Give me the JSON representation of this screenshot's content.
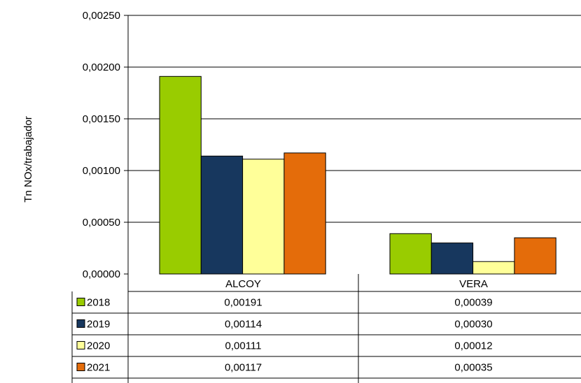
{
  "chart_data": {
    "type": "bar",
    "ylabel": "Tn NOx/trabajador",
    "xlabel": "",
    "ylim": [
      0,
      0.0025
    ],
    "y_ticks": [
      "0,00000",
      "0,00050",
      "0,00100",
      "0,00150",
      "0,00200",
      "0,00250"
    ],
    "y_tick_values": [
      0,
      0.0005,
      0.001,
      0.0015,
      0.002,
      0.0025
    ],
    "grid": true,
    "legend": "data-table-left",
    "categories": [
      "ALCOY",
      "VERA"
    ],
    "series": [
      {
        "name": "2018",
        "color": "#99cc00",
        "values": [
          0.00191,
          0.00039
        ],
        "labels": [
          "0,00191",
          "0,00039"
        ]
      },
      {
        "name": "2019",
        "color": "#17375e",
        "values": [
          0.00114,
          0.0003
        ],
        "labels": [
          "0,00114",
          "0,00030"
        ]
      },
      {
        "name": "2020",
        "color": "#ffff99",
        "values": [
          0.00111,
          0.00012
        ],
        "labels": [
          "0,00111",
          "0,00012"
        ]
      },
      {
        "name": "2021",
        "color": "#e46c0a",
        "values": [
          0.00117,
          0.00035
        ],
        "labels": [
          "0,00117",
          "0,00035"
        ]
      }
    ]
  }
}
